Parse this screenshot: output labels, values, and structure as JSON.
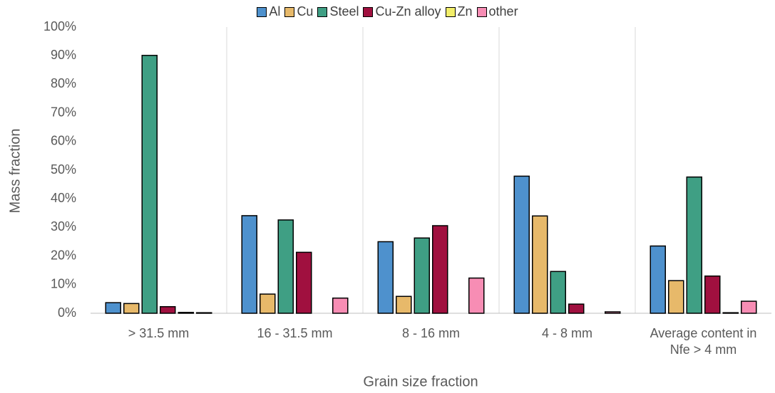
{
  "chart_data": {
    "type": "bar",
    "x_label": "Grain size fraction",
    "y_label": "Mass fraction",
    "categories": [
      "> 31.5 mm",
      "16 - 31.5 mm",
      "8 - 16 mm",
      "4 - 8 mm",
      "Average content in Nfe > 4 mm"
    ],
    "series": [
      {
        "name": "Al",
        "color": "#4e91cd",
        "values": [
          3.7,
          34.1,
          25.0,
          47.9,
          23.5
        ]
      },
      {
        "name": "Cu",
        "color": "#e7b96a",
        "values": [
          3.4,
          6.7,
          5.9,
          34.0,
          11.4
        ]
      },
      {
        "name": "Steel",
        "color": "#3f9f84",
        "values": [
          90.1,
          32.6,
          26.3,
          14.6,
          47.6
        ]
      },
      {
        "name": "Cu-Zn alloy",
        "color": "#a0103f",
        "values": [
          2.3,
          21.3,
          30.6,
          3.2,
          13.0
        ]
      },
      {
        "name": "Zn",
        "color": "#f2ee6a",
        "values": [
          0.3,
          0,
          0,
          0,
          0.2
        ]
      },
      {
        "name": "other",
        "color": "#f78db4",
        "values": [
          0.2,
          5.3,
          12.3,
          0.5,
          4.2
        ]
      }
    ],
    "ylim": [
      0,
      100
    ],
    "yticks": [
      {
        "value": 0,
        "label": "0%"
      },
      {
        "value": 10,
        "label": "10%"
      },
      {
        "value": 20,
        "label": "20%"
      },
      {
        "value": 30,
        "label": "30%"
      },
      {
        "value": 40,
        "label": "40%"
      },
      {
        "value": 50,
        "label": "50%"
      },
      {
        "value": 60,
        "label": "60%"
      },
      {
        "value": 70,
        "label": "70%"
      },
      {
        "value": 80,
        "label": "80%"
      },
      {
        "value": 90,
        "label": "90%"
      },
      {
        "value": 100,
        "label": "100%"
      }
    ],
    "legend": "top"
  }
}
